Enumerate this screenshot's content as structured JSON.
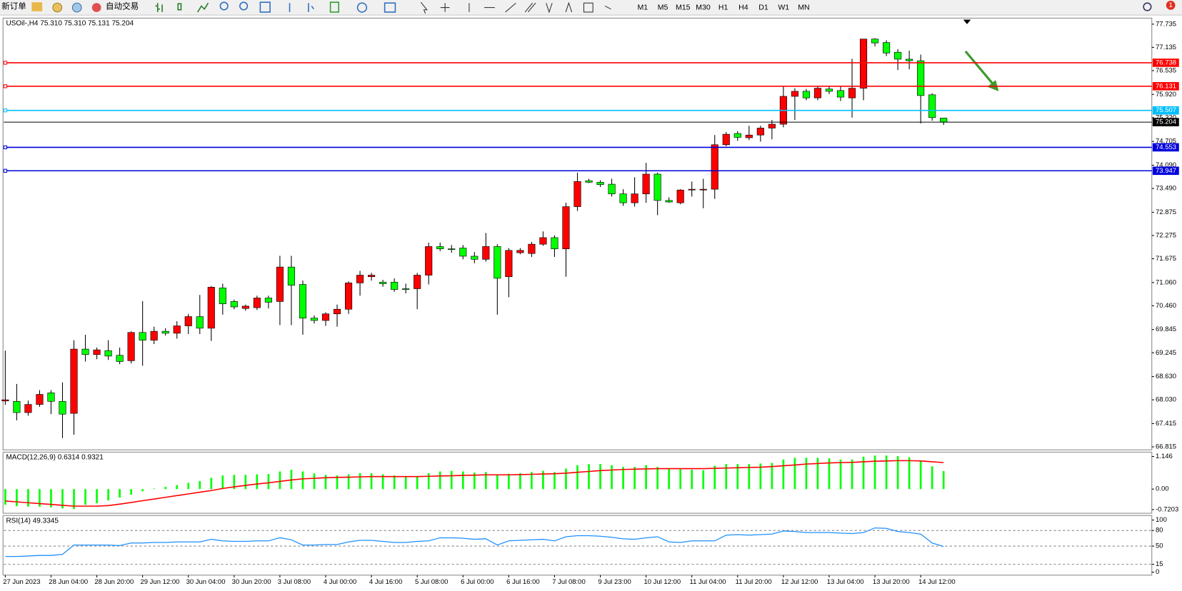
{
  "toolbar": {
    "new_order": "新订单",
    "auto_trading": "自动交易",
    "timeframes": [
      "M1",
      "M5",
      "M15",
      "M30",
      "H1",
      "H4",
      "D1",
      "W1",
      "MN"
    ],
    "notification_count": "1"
  },
  "chart_data": [
    {
      "type": "candlestick",
      "title": "USOil-,H4 75.310 75.310 75.131 75.204",
      "categories": [
        "27 Jun 2023",
        null,
        null,
        null,
        "28 Jun 04:00",
        null,
        null,
        null,
        "28 Jun 20:00",
        null,
        null,
        null,
        "29 Jun 12:00",
        null,
        null,
        null,
        "30 Jun 04:00",
        null,
        null,
        null,
        "30 Jun 20:00",
        null,
        null,
        null,
        "3 Jul 08:00",
        null,
        null,
        null,
        "4 Jul 00:00",
        null,
        null,
        null,
        "4 Jul 16:00",
        null,
        null,
        null,
        "5 Jul 08:00",
        null,
        null,
        null,
        "6 Jul 00:00",
        null,
        null,
        null,
        "6 Jul 16:00",
        null,
        null,
        null,
        "7 Jul 08:00",
        null,
        null,
        null,
        "9 Jul 23:00",
        null,
        null,
        null,
        "10 Jul 12:00",
        null,
        null,
        null,
        "11 Jul 04:00",
        null,
        null,
        null,
        "11 Jul 20:00",
        null,
        null,
        null,
        "12 Jul 12:00",
        null,
        null,
        null,
        "13 Jul 04:00",
        null,
        null,
        null,
        "13 Jul 20:00",
        null,
        null,
        null,
        "14 Jul 12:00",
        null,
        null
      ],
      "open": [
        68.0,
        67.99,
        67.7,
        67.91,
        68.21,
        67.99,
        67.68,
        69.34,
        69.2,
        69.3,
        69.18,
        69.04,
        69.77,
        69.57,
        69.8,
        69.75,
        69.94,
        70.18,
        69.88,
        70.92,
        70.57,
        70.39,
        70.41,
        70.66,
        70.57,
        71.46,
        71.01,
        70.14,
        70.08,
        70.25,
        70.37,
        71.05,
        71.21,
        71.07,
        71.07,
        70.9,
        70.9,
        71.25,
        71.99,
        71.93,
        71.95,
        71.74,
        71.66,
        71.99,
        71.21,
        71.83,
        71.81,
        72.05,
        72.22,
        71.93,
        73.02,
        73.69,
        73.65,
        73.6,
        73.35,
        73.12,
        73.35,
        73.86,
        73.18,
        73.12,
        73.45,
        73.45,
        73.47,
        74.62,
        74.91,
        74.8,
        74.87,
        75.05,
        75.15,
        75.87,
        76.0,
        75.83,
        76.06,
        76.02,
        75.83,
        76.08,
        77.35,
        77.26,
        77.01,
        76.83,
        76.79,
        75.91,
        75.31
      ],
      "high": [
        69.3,
        68.44,
        68.01,
        68.28,
        68.28,
        68.48,
        69.57,
        69.71,
        69.38,
        69.57,
        69.38,
        69.8,
        70.58,
        69.92,
        69.88,
        70.06,
        70.25,
        70.74,
        70.97,
        71.03,
        70.62,
        70.49,
        70.72,
        70.72,
        71.75,
        71.75,
        71.11,
        70.21,
        70.29,
        70.49,
        71.09,
        71.36,
        71.31,
        71.13,
        71.17,
        71.03,
        71.31,
        72.09,
        72.09,
        72.03,
        72.03,
        71.85,
        72.34,
        72.05,
        71.95,
        71.95,
        72.11,
        72.38,
        72.28,
        73.12,
        73.9,
        73.74,
        73.7,
        73.74,
        73.47,
        73.78,
        74.15,
        73.9,
        73.26,
        73.47,
        73.67,
        73.74,
        74.87,
        74.95,
        74.97,
        75.11,
        75.11,
        75.26,
        76.14,
        76.08,
        76.06,
        76.14,
        76.14,
        76.14,
        76.84,
        77.35,
        77.37,
        77.32,
        77.09,
        77.05,
        76.95,
        75.95,
        75.31
      ],
      "low": [
        67.9,
        67.5,
        67.62,
        67.85,
        67.66,
        67.04,
        67.13,
        69.02,
        69.08,
        69.06,
        68.95,
        68.97,
        68.91,
        69.47,
        69.69,
        69.61,
        69.73,
        69.73,
        69.55,
        70.23,
        70.37,
        70.33,
        70.35,
        70.39,
        69.96,
        69.96,
        69.71,
        70.0,
        69.94,
        69.92,
        70.25,
        70.72,
        71.11,
        70.95,
        70.82,
        70.78,
        70.37,
        71.01,
        71.87,
        71.83,
        71.66,
        71.56,
        71.6,
        70.23,
        70.68,
        71.79,
        71.72,
        72.01,
        71.72,
        71.21,
        72.91,
        73.63,
        73.53,
        73.28,
        73.04,
        73.02,
        73.12,
        72.8,
        73.12,
        73.08,
        73.28,
        72.98,
        73.22,
        74.58,
        74.72,
        74.74,
        74.7,
        74.76,
        75.07,
        75.26,
        75.77,
        75.77,
        75.93,
        75.75,
        75.32,
        75.77,
        77.16,
        76.91,
        76.55,
        76.57,
        75.17,
        75.24,
        75.131
      ],
      "close": [
        68.03,
        67.7,
        67.91,
        68.17,
        67.99,
        67.66,
        69.34,
        69.2,
        69.32,
        69.16,
        69.02,
        69.77,
        69.57,
        69.8,
        69.75,
        69.94,
        70.18,
        69.88,
        70.94,
        70.51,
        70.43,
        70.45,
        70.66,
        70.55,
        71.46,
        70.99,
        70.14,
        70.08,
        70.25,
        70.37,
        71.05,
        71.25,
        71.25,
        71.03,
        70.88,
        70.88,
        71.25,
        71.99,
        71.93,
        71.92,
        71.74,
        71.66,
        71.99,
        71.17,
        71.89,
        71.89,
        72.05,
        72.22,
        71.93,
        73.02,
        73.67,
        73.65,
        73.59,
        73.35,
        73.12,
        73.35,
        73.86,
        73.18,
        73.14,
        73.45,
        73.47,
        73.47,
        74.62,
        74.89,
        74.81,
        74.87,
        75.05,
        75.15,
        75.87,
        76.0,
        75.83,
        76.08,
        76.0,
        75.85,
        76.08,
        77.35,
        77.25,
        76.99,
        76.83,
        76.79,
        75.89,
        75.32,
        75.204
      ],
      "up_color": "#ff0000",
      "down_color": "#00ff00",
      "wick_color": "#000000",
      "ylim": [
        66.815,
        77.735
      ],
      "yticks": [
        77.735,
        77.135,
        76.535,
        {
          "value": 75.92,
          "label": "75.920"
        },
        {
          "value": 75.32,
          "label": "75.320"
        },
        74.705,
        {
          "value": 74.09,
          "label": "74.090"
        },
        {
          "value": 73.49,
          "label": "73.490"
        },
        72.875,
        72.275,
        71.675,
        {
          "value": 71.06,
          "label": "71.060"
        },
        {
          "value": 70.46,
          "label": "70.460"
        },
        69.845,
        69.245,
        {
          "value": 68.63,
          "label": "68.630"
        },
        {
          "value": 68.03,
          "label": "68.030"
        },
        67.415,
        66.815
      ],
      "levels": [
        {
          "value": 76.738,
          "color": "#ff0000"
        },
        {
          "value": 76.131,
          "color": "#ff0000"
        },
        {
          "value": 75.507,
          "color": "#00bfff"
        },
        {
          "value": 74.553,
          "color": "#0000dd"
        },
        {
          "value": 73.947,
          "color": "#0000dd"
        }
      ],
      "current_price": 75.204
    },
    {
      "type": "macd",
      "title": "MACD(12,26,9) 0.6314 0.9321",
      "histogram": [
        -0.55,
        -0.6,
        -0.62,
        -0.62,
        -0.64,
        -0.68,
        -0.7,
        -0.55,
        -0.5,
        -0.4,
        -0.3,
        -0.2,
        -0.08,
        0.02,
        0.08,
        0.14,
        0.22,
        0.28,
        0.4,
        0.48,
        0.5,
        0.5,
        0.52,
        0.53,
        0.62,
        0.68,
        0.62,
        0.55,
        0.5,
        0.48,
        0.52,
        0.56,
        0.56,
        0.52,
        0.48,
        0.44,
        0.46,
        0.56,
        0.62,
        0.64,
        0.62,
        0.58,
        0.6,
        0.52,
        0.54,
        0.56,
        0.6,
        0.64,
        0.6,
        0.72,
        0.84,
        0.88,
        0.88,
        0.84,
        0.78,
        0.78,
        0.84,
        0.78,
        0.72,
        0.7,
        0.68,
        0.66,
        0.82,
        0.88,
        0.88,
        0.88,
        0.9,
        0.92,
        1.04,
        1.1,
        1.1,
        1.1,
        1.08,
        1.04,
        1.04,
        1.14,
        1.18,
        1.18,
        1.16,
        1.12,
        0.98,
        0.8,
        0.6314
      ],
      "signal": [
        -0.42,
        -0.45,
        -0.48,
        -0.51,
        -0.54,
        -0.57,
        -0.6,
        -0.6,
        -0.6,
        -0.58,
        -0.53,
        -0.47,
        -0.41,
        -0.35,
        -0.29,
        -0.23,
        -0.17,
        -0.11,
        -0.05,
        0.02,
        0.08,
        0.13,
        0.18,
        0.22,
        0.27,
        0.32,
        0.36,
        0.38,
        0.4,
        0.41,
        0.42,
        0.43,
        0.44,
        0.44,
        0.44,
        0.44,
        0.44,
        0.45,
        0.46,
        0.47,
        0.48,
        0.49,
        0.5,
        0.5,
        0.5,
        0.51,
        0.52,
        0.53,
        0.54,
        0.56,
        0.59,
        0.62,
        0.65,
        0.67,
        0.69,
        0.7,
        0.71,
        0.72,
        0.72,
        0.72,
        0.72,
        0.72,
        0.73,
        0.74,
        0.75,
        0.76,
        0.77,
        0.79,
        0.82,
        0.85,
        0.88,
        0.9,
        0.92,
        0.93,
        0.94,
        0.96,
        0.98,
        0.99,
        1.0,
        1.0,
        0.99,
        0.96,
        0.9321
      ],
      "histogram_color": "#00ff00",
      "signal_color": "#ff0000",
      "ylim": [
        -0.85,
        1.3
      ],
      "yticks": [
        1.146,
        {
          "value": 0,
          "label": "0.00"
        },
        -0.7203
      ]
    },
    {
      "type": "line",
      "title": "RSI(14) 49.3345",
      "values": [
        30,
        30,
        31,
        32,
        32,
        34,
        52,
        52,
        52,
        52,
        51,
        56,
        56,
        57,
        57,
        58,
        58,
        58,
        63,
        60,
        59,
        59,
        60,
        60,
        66,
        62,
        52,
        52,
        53,
        53,
        58,
        61,
        61,
        59,
        57,
        57,
        59,
        60,
        66,
        66,
        65,
        63,
        64,
        52,
        60,
        61,
        62,
        63,
        60,
        68,
        70,
        70,
        69,
        67,
        64,
        63,
        66,
        68,
        58,
        57,
        60,
        60,
        60,
        71,
        72,
        71,
        72,
        73,
        79,
        78,
        76,
        76,
        76,
        75,
        74,
        76,
        85,
        84,
        78,
        76,
        73,
        56,
        49.3345
      ],
      "color": "#1e90ff",
      "ylim": [
        0,
        100
      ],
      "yticks": [
        100,
        80,
        50,
        15,
        0
      ],
      "levels": [
        80,
        50,
        15
      ]
    }
  ]
}
